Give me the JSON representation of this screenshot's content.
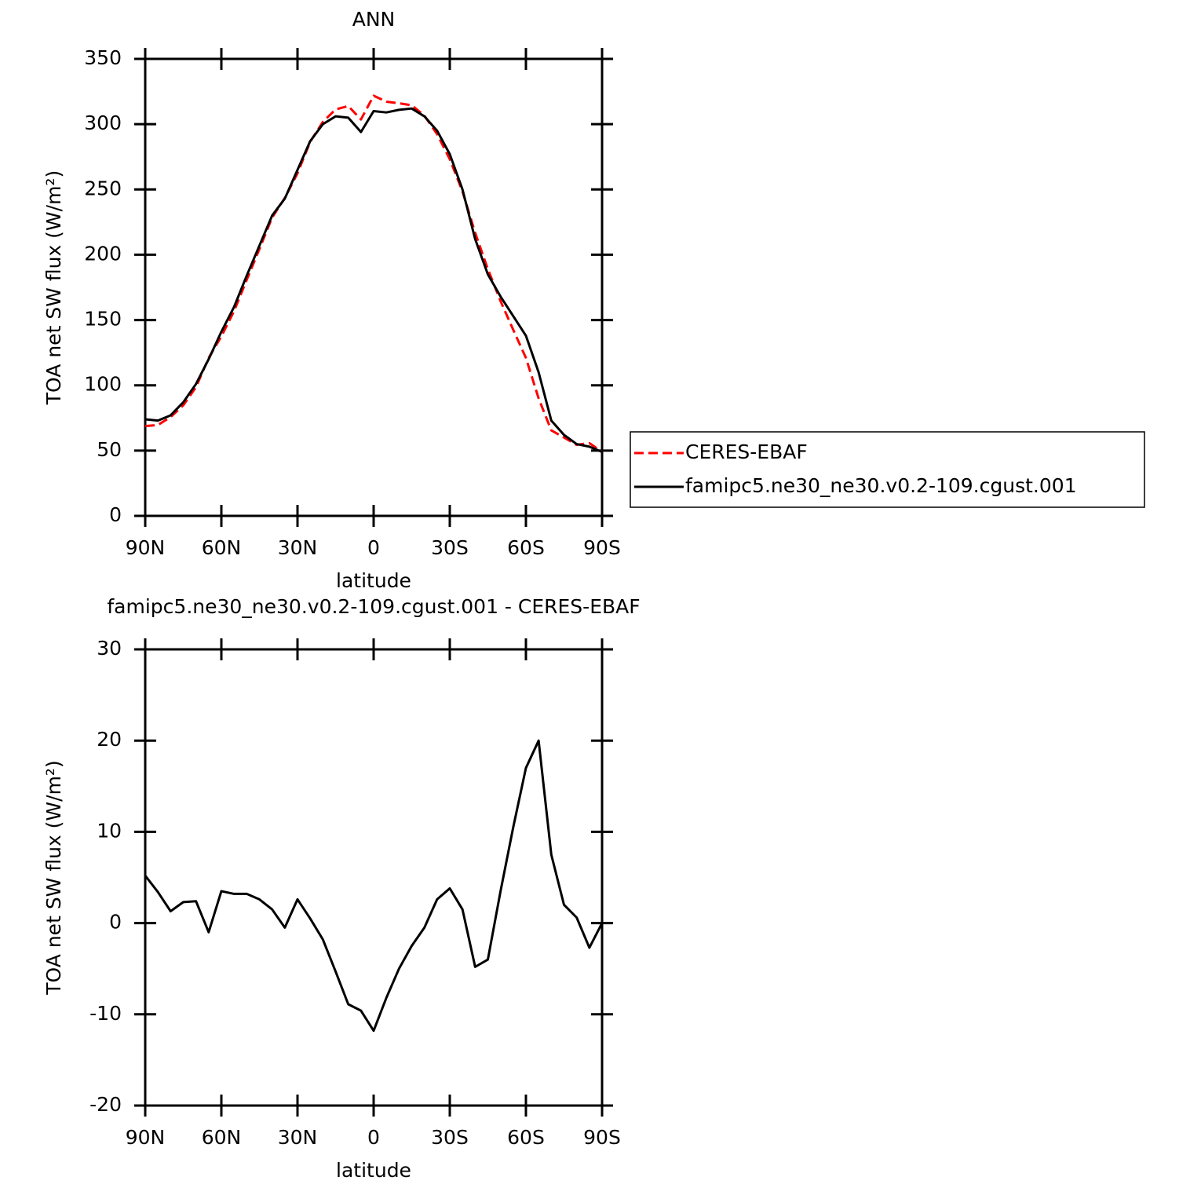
{
  "chart_data": [
    {
      "type": "line",
      "title": "ANN",
      "xlabel": "latitude",
      "ylabel": "TOA net SW flux (W/m²)",
      "x": [
        90,
        85,
        80,
        75,
        70,
        65,
        60,
        55,
        50,
        45,
        40,
        35,
        30,
        25,
        20,
        15,
        10,
        5,
        0,
        -5,
        -10,
        -15,
        -20,
        -25,
        -30,
        -35,
        -40,
        -45,
        -50,
        -55,
        -60,
        -65,
        -70,
        -75,
        -80,
        -85,
        -90
      ],
      "xlim": [
        90,
        -90
      ],
      "xticks": [
        {
          "value": 90,
          "label": "90N"
        },
        {
          "value": 60,
          "label": "60N"
        },
        {
          "value": 30,
          "label": "30N"
        },
        0,
        {
          "value": -30,
          "label": "30S"
        },
        {
          "value": -60,
          "label": "60S"
        },
        {
          "value": -90,
          "label": "90S"
        }
      ],
      "ylim": [
        0,
        350
      ],
      "yticks": [
        0,
        50,
        100,
        150,
        200,
        250,
        300,
        350
      ],
      "legend": "right",
      "series": [
        {
          "name": "CERES-EBAF",
          "color": "#ff0000",
          "linestyle": "dashed",
          "values": [
            68.8,
            69.6,
            75.7,
            84.7,
            98.6,
            121,
            137.5,
            156.8,
            180.8,
            204.4,
            228.5,
            243.5,
            262.4,
            286.5,
            301.8,
            311.3,
            313.9,
            303.6,
            321.8,
            317.2,
            316,
            314.5,
            306.5,
            292.4,
            273.2,
            248.5,
            216.8,
            189,
            164.5,
            142.5,
            121,
            90,
            65.5,
            60,
            54.4,
            55.7,
            49
          ]
        },
        {
          "name": "famipc5.ne30_ne30.v0.2-109.cgust.001",
          "color": "#000000",
          "linestyle": "solid",
          "values": [
            74,
            73,
            77,
            87,
            101,
            120,
            141,
            160,
            184,
            207,
            230,
            243,
            265,
            287,
            300,
            306,
            305,
            294,
            310,
            309,
            311,
            312,
            306,
            295,
            277,
            250,
            212,
            185,
            168,
            153,
            138,
            110,
            73,
            62,
            55,
            53,
            49
          ]
        }
      ]
    },
    {
      "type": "line",
      "title": "famipc5.ne30_ne30.v0.2-109.cgust.001 - CERES-EBAF",
      "xlabel": "latitude",
      "ylabel": "TOA net SW flux (W/m²)",
      "x": [
        90,
        85,
        80,
        75,
        70,
        65,
        60,
        55,
        50,
        45,
        40,
        35,
        30,
        25,
        20,
        15,
        10,
        5,
        0,
        -5,
        -10,
        -15,
        -20,
        -25,
        -30,
        -35,
        -40,
        -45,
        -50,
        -55,
        -60,
        -65,
        -70,
        -75,
        -80,
        -85,
        -90
      ],
      "xlim": [
        90,
        -90
      ],
      "xticks": [
        {
          "value": 90,
          "label": "90N"
        },
        {
          "value": 60,
          "label": "60N"
        },
        {
          "value": 30,
          "label": "30N"
        },
        0,
        {
          "value": -30,
          "label": "30S"
        },
        {
          "value": -60,
          "label": "60S"
        },
        {
          "value": -90,
          "label": "90S"
        }
      ],
      "ylim": [
        -20,
        30
      ],
      "yticks": [
        -20,
        -10,
        0,
        10,
        20,
        30
      ],
      "series": [
        {
          "color": "#000000",
          "linestyle": "solid",
          "values": [
            5.2,
            3.4,
            1.3,
            2.3,
            2.4,
            -1,
            3.5,
            3.2,
            3.2,
            2.6,
            1.5,
            -0.5,
            2.6,
            0.5,
            -1.8,
            -5.3,
            -8.9,
            -9.6,
            -11.8,
            -8.2,
            -5,
            -2.5,
            -0.5,
            2.6,
            3.8,
            1.5,
            -4.8,
            -4,
            3.5,
            10.5,
            17,
            20,
            7.5,
            2,
            0.6,
            -2.7,
            0
          ]
        }
      ]
    }
  ]
}
